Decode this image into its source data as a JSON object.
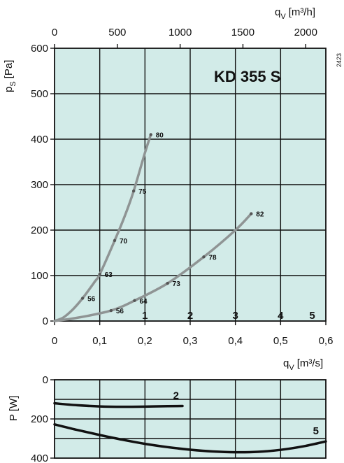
{
  "chart_data": [
    {
      "type": "line",
      "title": "KD 355 S",
      "code": "2423",
      "ylabel": "p_s [Pa]",
      "ylabel_main": "p",
      "ylabel_sub": "S",
      "ylabel_unit": "[Pa]",
      "ylim": [
        0,
        600
      ],
      "yticks": [
        "0",
        "100",
        "200",
        "300",
        "400",
        "500",
        "600"
      ],
      "xlabel": "q_V [m³/s]",
      "xlabel_main": "q",
      "xlabel_sub": "V",
      "xlabel_unit": "[m³/s]",
      "xlim": [
        0,
        0.6
      ],
      "xticks": [
        "0",
        "0,1",
        "0,2",
        "0,3",
        "0,4",
        "0,5",
        "0,6"
      ],
      "x2label": "q_V [m³/h]",
      "x2label_main": "q",
      "x2label_sub": "V",
      "x2label_unit": "[m³/h]",
      "x2lim": [
        0,
        2160
      ],
      "x2ticks": [
        {
          "label": "0",
          "value": 0
        },
        {
          "label": "500",
          "value": 500
        },
        {
          "label": "1000",
          "value": 1000
        },
        {
          "label": "1500",
          "value": 1500
        },
        {
          "label": "2000",
          "value": 2000
        }
      ],
      "speed_markers": [
        {
          "label": "1",
          "x": 0.2
        },
        {
          "label": "2",
          "x": 0.3
        },
        {
          "label": "3",
          "x": 0.4
        },
        {
          "label": "4",
          "x": 0.5
        },
        {
          "label": "5",
          "x": 0.57
        }
      ],
      "series": [
        {
          "x": [
            0,
            0.02,
            0.04,
            0.062,
            0.09,
            0.1,
            0.133,
            0.155,
            0.175,
            0.2,
            0.213
          ],
          "y": [
            0,
            8,
            25,
            50,
            88,
            103,
            177,
            230,
            286,
            370,
            410
          ],
          "points": [
            {
              "x": 0.062,
              "y": 50,
              "label": "56"
            },
            {
              "x": 0.1,
              "y": 103,
              "label": "63"
            },
            {
              "x": 0.133,
              "y": 177,
              "label": "70"
            },
            {
              "x": 0.175,
              "y": 286,
              "label": "75"
            },
            {
              "x": 0.213,
              "y": 410,
              "label": "80"
            }
          ]
        },
        {
          "x": [
            0,
            0.05,
            0.125,
            0.177,
            0.25,
            0.33,
            0.4,
            0.435
          ],
          "y": [
            0,
            7,
            23,
            45,
            83,
            141,
            200,
            236
          ],
          "points": [
            {
              "x": 0.125,
              "y": 23,
              "label": "56"
            },
            {
              "x": 0.177,
              "y": 45,
              "label": "64"
            },
            {
              "x": 0.25,
              "y": 83,
              "label": "73"
            },
            {
              "x": 0.33,
              "y": 141,
              "label": "78"
            },
            {
              "x": 0.435,
              "y": 236,
              "label": "82"
            }
          ]
        }
      ]
    },
    {
      "type": "line",
      "ylabel": "P [W]",
      "ylim": [
        400,
        0
      ],
      "yticks": [
        "0",
        "200",
        "400"
      ],
      "xlim": [
        0,
        0.6
      ],
      "series": [
        {
          "name": "2",
          "x": [
            0,
            0.05,
            0.1,
            0.15,
            0.2,
            0.25,
            0.283
          ],
          "y": [
            120,
            130,
            136,
            138,
            137,
            135,
            134
          ]
        },
        {
          "name": "5",
          "x": [
            0,
            0.05,
            0.1,
            0.15,
            0.2,
            0.25,
            0.3,
            0.35,
            0.4,
            0.45,
            0.5,
            0.55,
            0.6
          ],
          "y": [
            228,
            256,
            282,
            306,
            327,
            344,
            357,
            366,
            370,
            368,
            358,
            340,
            315
          ]
        }
      ]
    }
  ]
}
